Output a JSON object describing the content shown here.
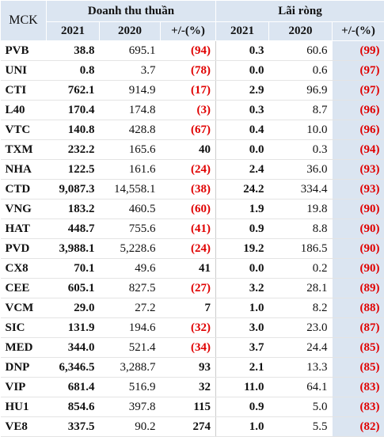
{
  "header": {
    "key": "MCK",
    "groups": [
      "Doanh thu thuần",
      "Lãi ròng"
    ],
    "columns": [
      "2021",
      "2020",
      "+/-(%)",
      "2021",
      "2020",
      "+/-(%)"
    ]
  },
  "table": {
    "rows": [
      [
        "PVB",
        "38.8",
        "695.1",
        "(94)",
        "0.3",
        "60.6",
        "(99)"
      ],
      [
        "UNI",
        "0.8",
        "3.7",
        "(78)",
        "0.0",
        "0.6",
        "(97)"
      ],
      [
        "CTI",
        "762.1",
        "914.9",
        "(17)",
        "2.9",
        "96.9",
        "(97)"
      ],
      [
        "L40",
        "170.4",
        "174.8",
        "(3)",
        "0.3",
        "8.7",
        "(96)"
      ],
      [
        "VTC",
        "140.8",
        "428.8",
        "(67)",
        "0.4",
        "10.0",
        "(96)"
      ],
      [
        "TXM",
        "232.2",
        "165.6",
        "40",
        "0.0",
        "0.3",
        "(94)"
      ],
      [
        "NHA",
        "122.5",
        "161.6",
        "(24)",
        "2.4",
        "36.0",
        "(93)"
      ],
      [
        "CTD",
        "9,087.3",
        "14,558.1",
        "(38)",
        "24.2",
        "334.4",
        "(93)"
      ],
      [
        "VNG",
        "183.2",
        "460.5",
        "(60)",
        "1.9",
        "19.8",
        "(90)"
      ],
      [
        "HAT",
        "448.7",
        "755.6",
        "(41)",
        "0.9",
        "8.8",
        "(90)"
      ],
      [
        "PVD",
        "3,988.1",
        "5,228.6",
        "(24)",
        "19.2",
        "186.5",
        "(90)"
      ],
      [
        "CX8",
        "70.1",
        "49.6",
        "41",
        "0.0",
        "0.2",
        "(90)"
      ],
      [
        "CEE",
        "605.1",
        "827.5",
        "(27)",
        "3.2",
        "28.1",
        "(89)"
      ],
      [
        "VCM",
        "29.0",
        "27.2",
        "7",
        "1.0",
        "8.2",
        "(88)"
      ],
      [
        "SIC",
        "131.9",
        "194.6",
        "(32)",
        "3.0",
        "23.0",
        "(87)"
      ],
      [
        "MED",
        "344.0",
        "521.4",
        "(34)",
        "3.7",
        "24.4",
        "(85)"
      ],
      [
        "DNP",
        "6,346.5",
        "3,288.7",
        "93",
        "2.1",
        "13.3",
        "(85)"
      ],
      [
        "VIP",
        "681.4",
        "516.9",
        "32",
        "11.0",
        "64.1",
        "(83)"
      ],
      [
        "HU1",
        "854.6",
        "397.8",
        "115",
        "0.9",
        "5.0",
        "(83)"
      ],
      [
        "VE8",
        "337.5",
        "90.2",
        "274",
        "1.0",
        "5.5",
        "(82)"
      ]
    ]
  }
}
